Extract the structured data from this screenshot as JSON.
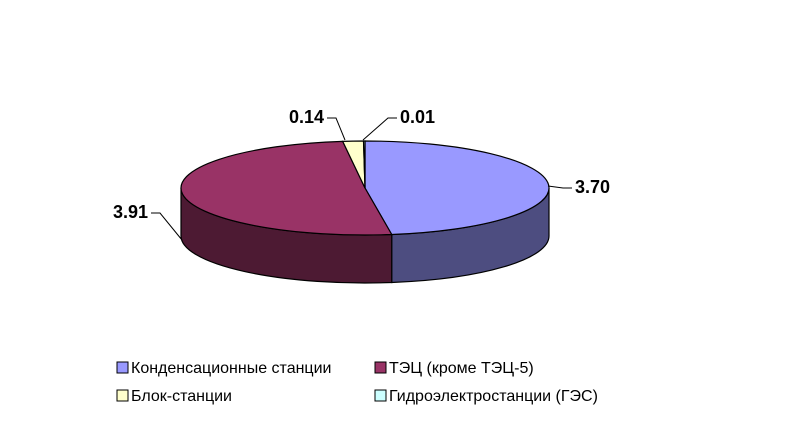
{
  "chart_data": {
    "type": "pie",
    "categories": [
      "Конденсационные станции",
      "ТЭЦ (кроме ТЭЦ-5)",
      "Блок-станции",
      "Гидроэлектростанции (ГЭС)"
    ],
    "values": [
      3.7,
      3.91,
      0.14,
      0.01
    ],
    "value_labels": [
      "3.70",
      "3.91",
      "0.14",
      "0.01"
    ],
    "colors": [
      "#9999ff",
      "#993366",
      "#ffffcc",
      "#ccffff"
    ]
  }
}
